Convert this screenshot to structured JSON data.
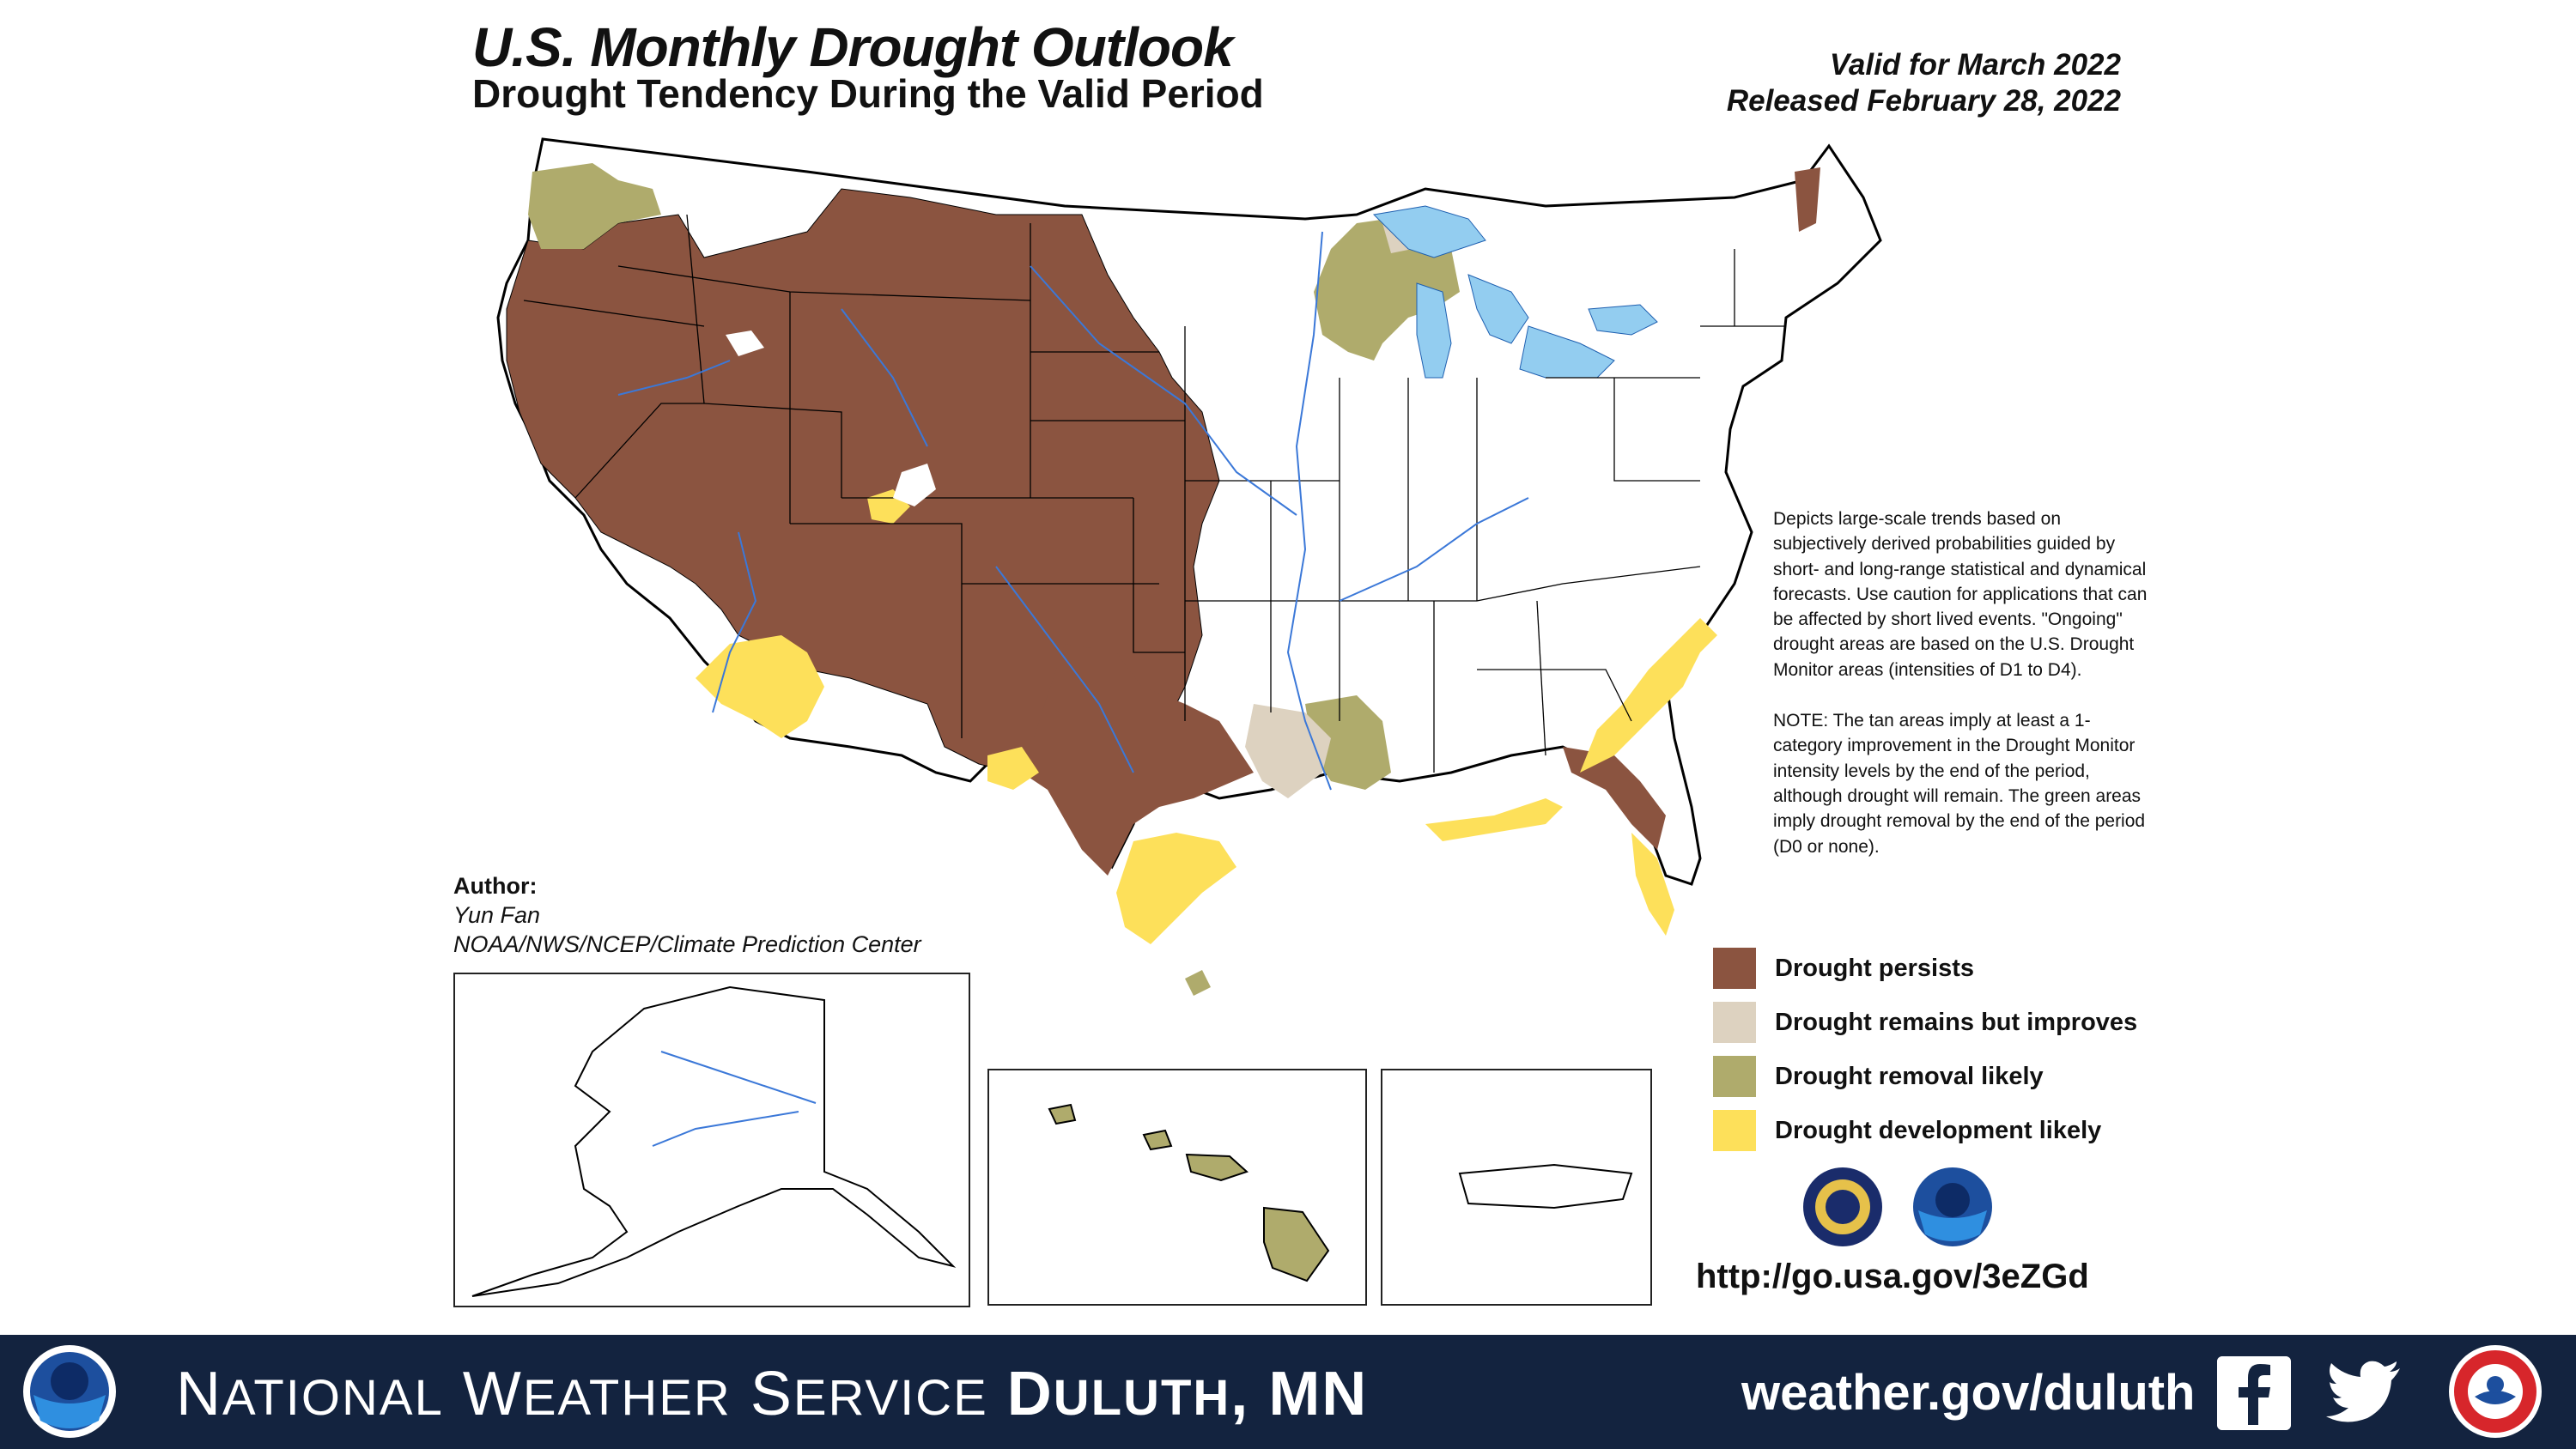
{
  "title": "U.S. Monthly Drought Outlook",
  "subtitle": "Drought Tendency During the Valid Period",
  "valid_for": "Valid for March 2022",
  "released": "Released February 28, 2022",
  "description": [
    "Depicts large-scale trends based on subjectively derived probabilities guided by short- and long-range statistical and dynamical forecasts. Use caution for applications that can be affected by short lived events. \"Ongoing\" drought areas are based on the U.S. Drought Monitor areas (intensities of D1 to D4).",
    "NOTE: The tan areas imply at least a 1-category improvement in the Drought Monitor intensity levels by the end of the period, although drought will remain. The green areas imply drought removal by the end of the period (D0 or none)."
  ],
  "legend": [
    {
      "label": "Drought persists",
      "color": "#8b5440"
    },
    {
      "label": "Drought remains but improves",
      "color": "#ddd2c0"
    },
    {
      "label": "Drought removal likely",
      "color": "#afab6c"
    },
    {
      "label": "Drought development likely",
      "color": "#fde05a"
    }
  ],
  "author": {
    "heading": "Author:",
    "name": "Yun Fan",
    "org": "NOAA/NWS/NCEP/Climate Prediction Center"
  },
  "url": "http://go.usa.gov/3eZGd",
  "footer": {
    "national": "N",
    "ational": "ATIONAL",
    "weather_w": "W",
    "eather": "EATHER",
    "service_s": "S",
    "ervice": "ERVICE",
    "duluth_d": "D",
    "uluth": "ULUTH",
    "mn": "MN",
    "site": "weather.gov/duluth"
  },
  "colors": {
    "persists": "#8b5440",
    "improves": "#ddd2c0",
    "removal": "#afab6c",
    "development": "#fde05a",
    "water": "#93cdf0",
    "river": "#3b78d8",
    "footer_bg": "#13233f"
  }
}
